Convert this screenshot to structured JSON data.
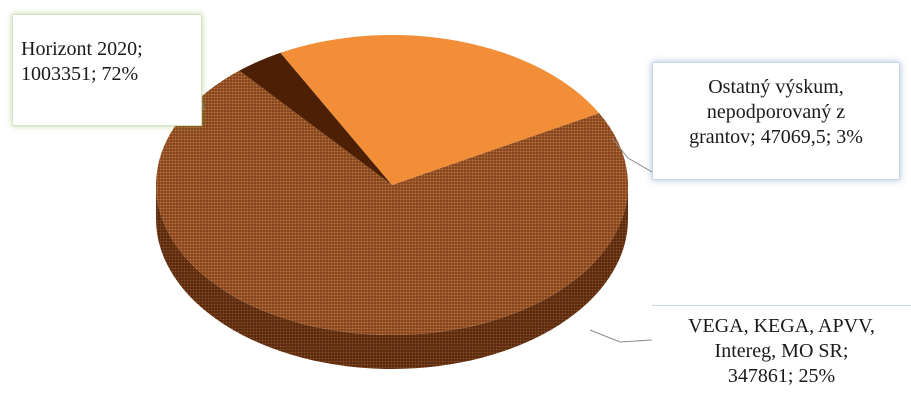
{
  "chart_data": {
    "type": "pie",
    "style": "3d",
    "slices": [
      {
        "name": "Horizont 2020",
        "value": 1003351,
        "percent": 72,
        "color": "#7a3d18",
        "label_lines": [
          "Horizont 2020;",
          "1003351; 72%"
        ]
      },
      {
        "name": "Ostatný výskum, nepodporovaný z grantov",
        "value": 47069.5,
        "percent": 3,
        "color": "#4d2005",
        "label_lines": [
          "Ostatný výskum,",
          "nepodporovaný z",
          "grantov; 47069,5; 3%"
        ]
      },
      {
        "name": "VEGA, KEGA, APVV, Intereg, MO SR",
        "value": 347861,
        "percent": 25,
        "color": "#f28e38",
        "label_lines": [
          "VEGA, KEGA, APVV,",
          "Intereg, MO SR;",
          "347861; 25%"
        ]
      }
    ]
  }
}
